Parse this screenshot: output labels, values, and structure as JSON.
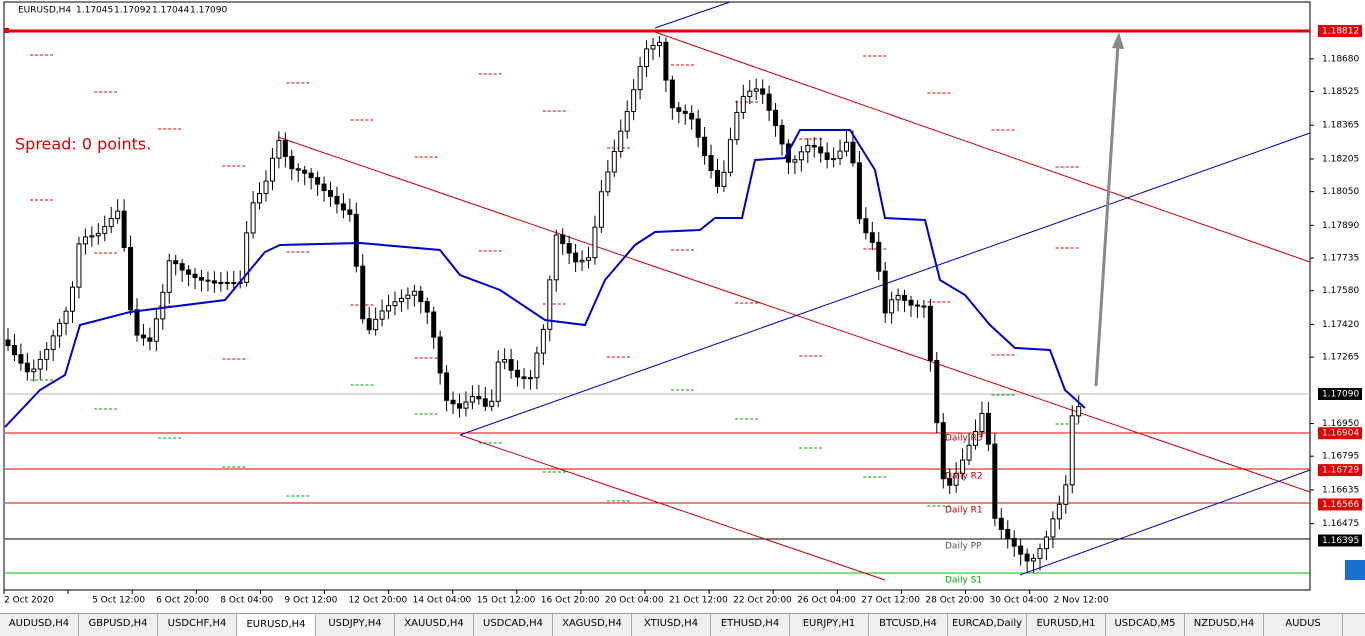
{
  "header": {
    "symbol": "EURUSD,H4",
    "quote": [
      "1.17045",
      "1.17092",
      "1.17044",
      "1.17090"
    ]
  },
  "annotation": "Spread: 0 points.",
  "pivots": [
    "Daily R3",
    "Daily R2",
    "Daily R1",
    "Daily PP",
    "Daily S1"
  ],
  "price_scale": [
    "1.18680",
    "1.18525",
    "1.18365",
    "1.18205",
    "1.18050",
    "1.17890",
    "1.17735",
    "1.17580",
    "1.17420",
    "1.17265",
    "1.16950",
    "1.16795",
    "1.16635",
    "1.16475"
  ],
  "price_markers": [
    {
      "label": "1.18812",
      "color": "#e00000"
    },
    {
      "label": "1.17090",
      "color": "#000000"
    },
    {
      "label": "1.16904",
      "color": "#e00000"
    },
    {
      "label": "1.16729",
      "color": "#e00000"
    },
    {
      "label": "1.16566",
      "color": "#e00000"
    },
    {
      "label": "1.16395",
      "color": "#000000"
    }
  ],
  "time_scale": [
    "2 Oct 2020",
    "5 Oct 12:00",
    "6 Oct 20:00",
    "8 Oct 04:00",
    "9 Oct 12:00",
    "12 Oct 20:00",
    "14 Oct 04:00",
    "15 Oct 12:00",
    "16 Oct 20:00",
    "20 Oct 04:00",
    "21 Oct 12:00",
    "22 Oct 20:00",
    "26 Oct 04:00",
    "27 Oct 12:00",
    "28 Oct 20:00",
    "30 Oct 04:00",
    "2 Nov 12:00"
  ],
  "tabs": [
    "AUDUSD,H4",
    "GBPUSD,H4",
    "USDCHF,H4",
    "EURUSD,H4",
    "USDJPY,H4",
    "XAUUSD,H4",
    "USDCAD,H4",
    "XAGUSD,H4",
    "XTIUSD,H4",
    "ETHUSD,H4",
    "EURJPY,H1",
    "BTCUSD,H4",
    "EURCAD,Daily",
    "EURUSD,H1",
    "USDCAD,M5",
    "NZDUSD,H4",
    "AUDUS"
  ],
  "active_tab": 3
}
